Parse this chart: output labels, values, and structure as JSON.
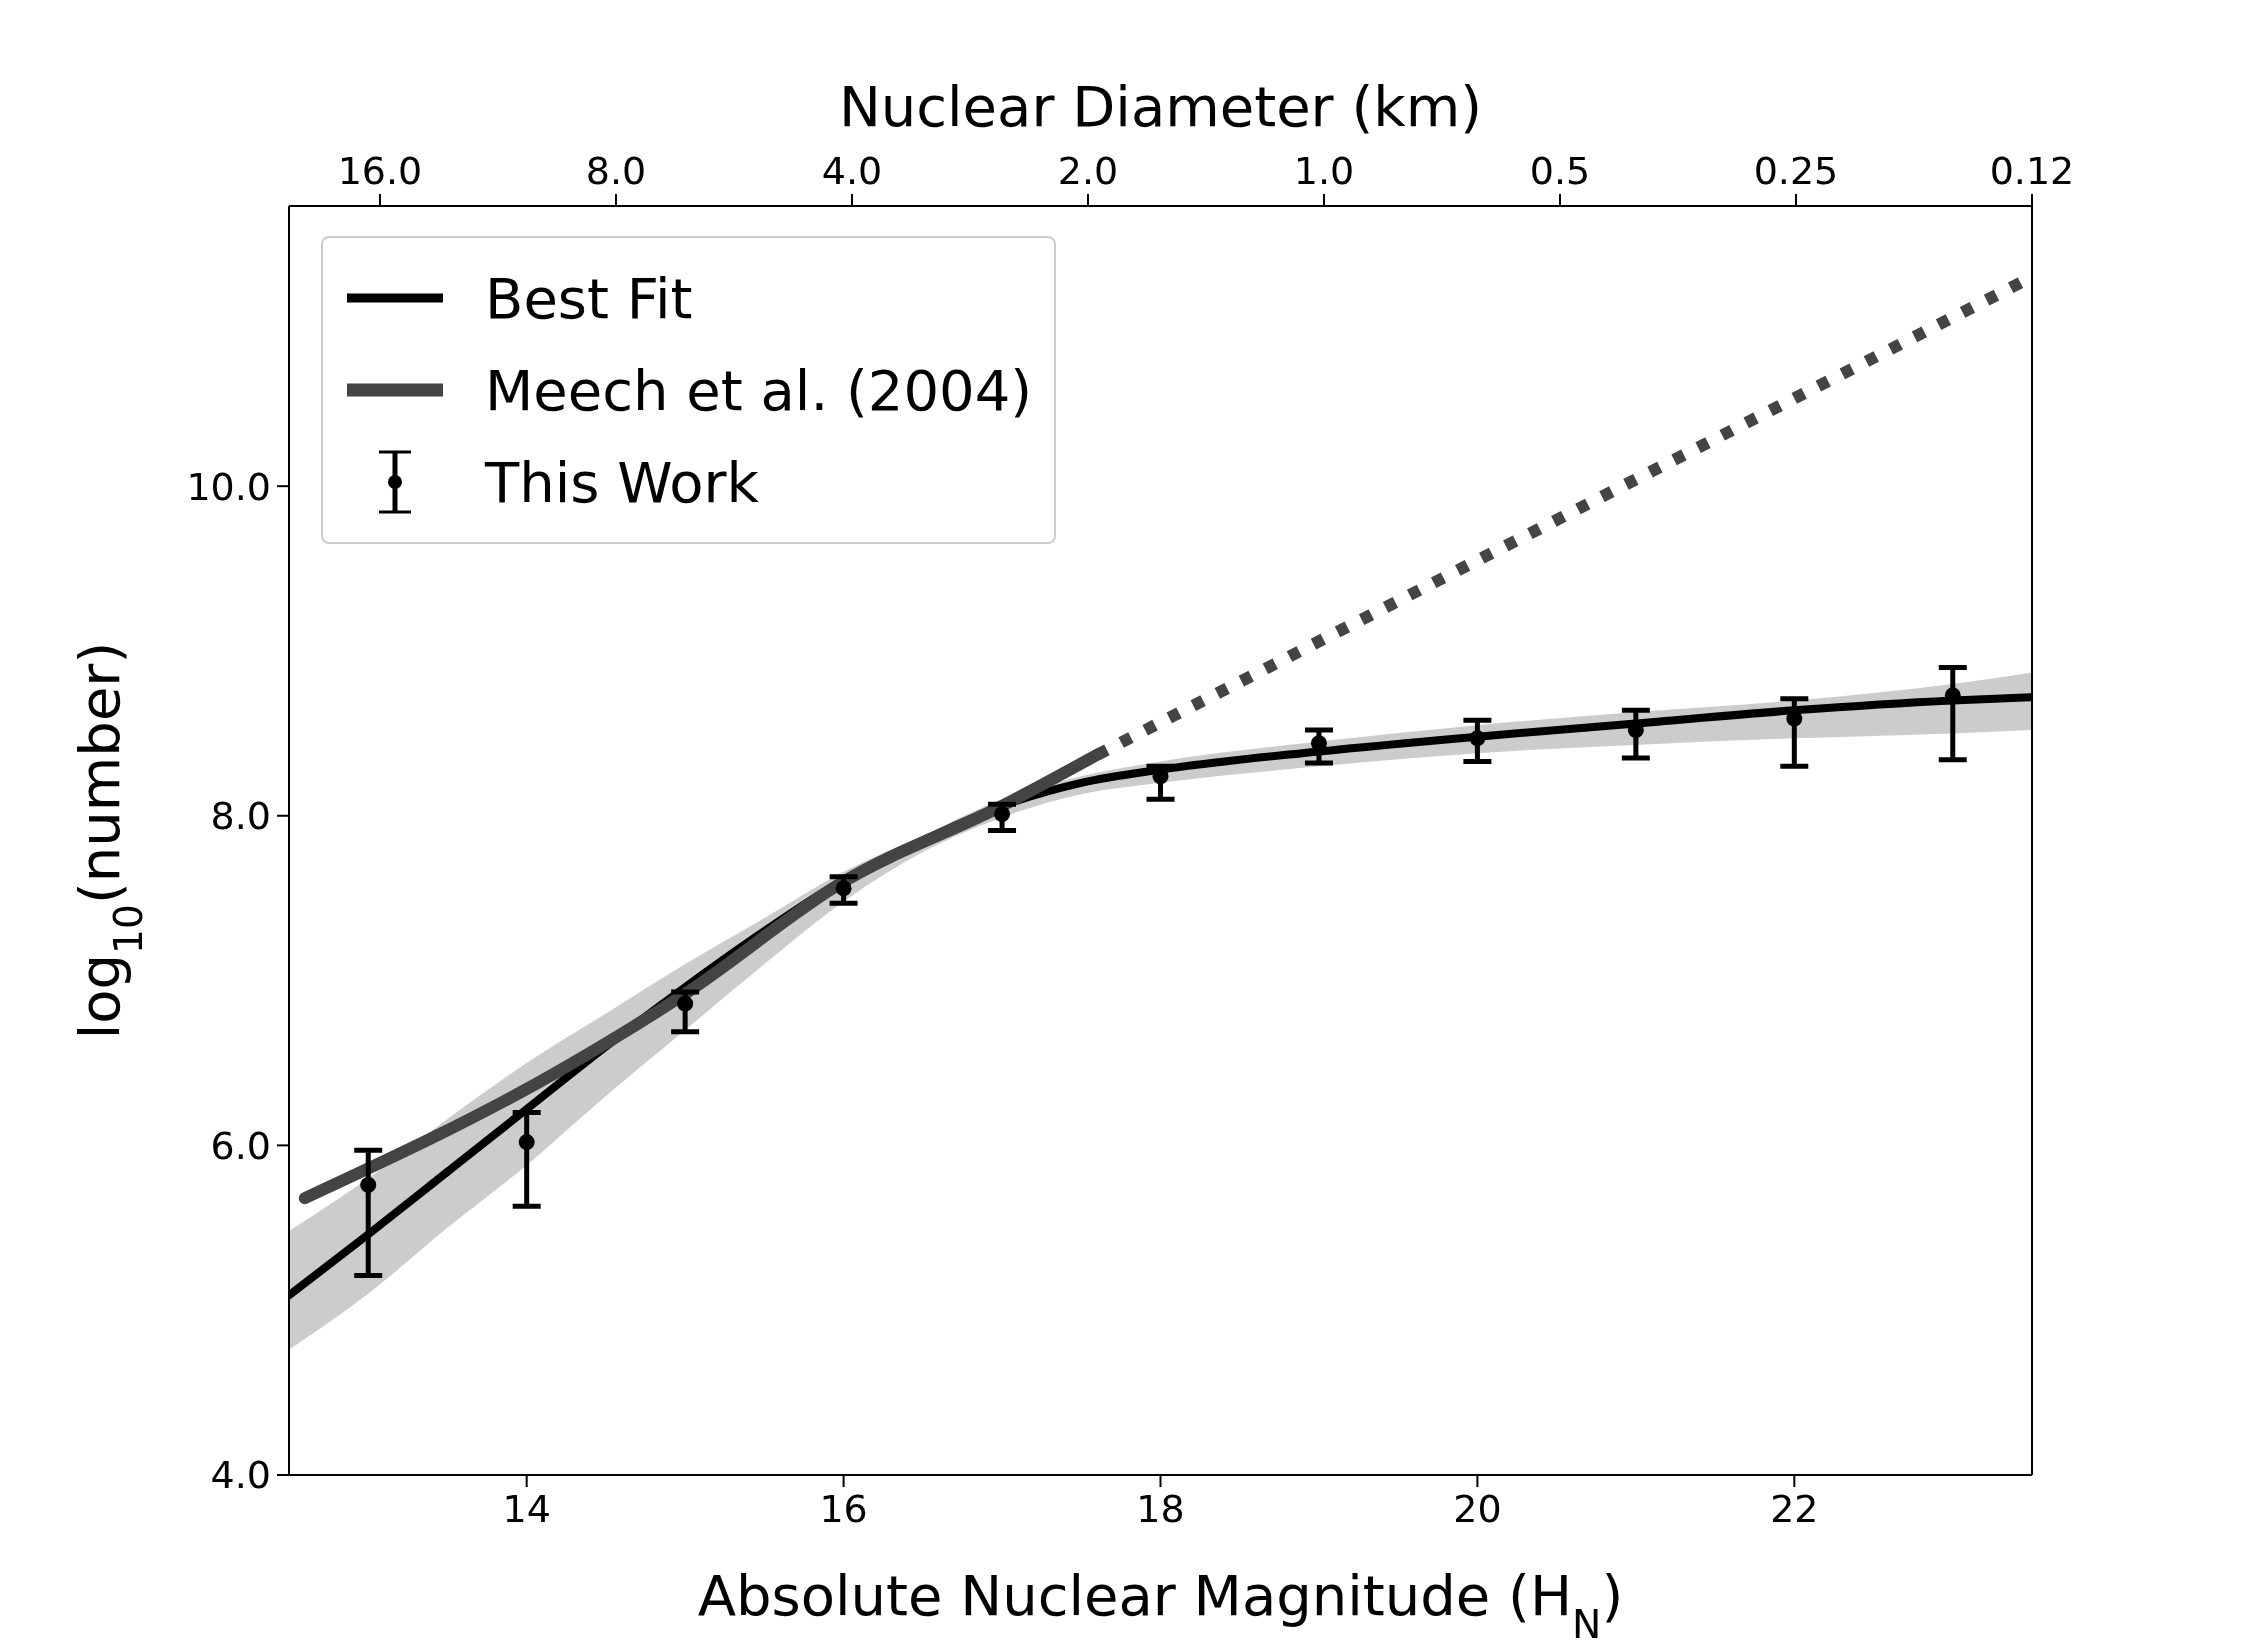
{
  "chart_data": {
    "type": "line",
    "xlabel": "Absolute Nuclear Magnitude (H$_{N}$)",
    "ylabel": "log$_{10}$(number)",
    "x2label": "Nuclear Diameter (km)",
    "xlim": [
      12.5,
      23.5
    ],
    "xticks": [
      14,
      16,
      18,
      20,
      22
    ],
    "ylim": [
      4.0,
      11.7
    ],
    "yticks": [
      {
        "value": 4,
        "label": "4.0"
      },
      {
        "value": 6,
        "label": "6.0"
      },
      {
        "value": 8,
        "label": "8.0"
      },
      {
        "value": 10,
        "label": "10.0"
      }
    ],
    "x2lim": [
      20.9,
      0.125
    ],
    "x2ticks": [
      {
        "value": 16,
        "label": "16.0"
      },
      {
        "value": 8,
        "label": "8.0"
      },
      {
        "value": 4,
        "label": "4.0"
      },
      {
        "value": 2,
        "label": "2.0"
      },
      {
        "value": 1,
        "label": "1.0"
      },
      0.5,
      0.25,
      {
        "value": 0.125,
        "label": "0.12"
      }
    ],
    "log": "x2",
    "legend": "top left",
    "grid": false,
    "series": [
      {
        "name": "Best Fit",
        "color": "#000000",
        "x": [
          12.5,
          13,
          13.5,
          14,
          14.5,
          15,
          15.5,
          16,
          16.5,
          17,
          17.5,
          18,
          19,
          20,
          21,
          22,
          23,
          23.5
        ],
        "values": [
          5.09,
          5.46,
          5.84,
          6.22,
          6.6,
          6.96,
          7.3,
          7.61,
          7.85,
          8.06,
          8.2,
          8.28,
          8.39,
          8.48,
          8.56,
          8.64,
          8.7,
          8.72
        ],
        "lower": [
          4.76,
          5.1,
          5.5,
          5.88,
          6.3,
          6.7,
          7.1,
          7.48,
          7.78,
          7.99,
          8.13,
          8.2,
          8.3,
          8.38,
          8.43,
          8.47,
          8.5,
          8.52
        ],
        "upper": [
          5.48,
          5.8,
          6.16,
          6.5,
          6.8,
          7.1,
          7.38,
          7.66,
          7.88,
          8.1,
          8.24,
          8.33,
          8.45,
          8.55,
          8.63,
          8.7,
          8.8,
          8.87
        ],
        "line_style": "solid"
      },
      {
        "name": "Meech et al. (2004)",
        "color": "#444444",
        "x": [
          12.6,
          14.2,
          15,
          16,
          17,
          17.6
        ],
        "values": [
          5.68,
          6.45,
          6.92,
          7.6,
          8.06,
          8.37
        ],
        "line_style": "solid"
      },
      {
        "color": "#444444",
        "x": [
          17.6,
          23.5
        ],
        "values": [
          8.37,
          11.27
        ],
        "line_style": "dotted"
      },
      {
        "name": "This Work",
        "type": "scatter",
        "color": "#000000",
        "marker": "circle",
        "x": [
          13,
          14,
          15,
          16,
          17,
          18,
          19,
          20,
          21,
          22,
          23
        ],
        "values": [
          5.76,
          6.02,
          6.86,
          7.56,
          8.01,
          8.24,
          8.44,
          8.47,
          8.52,
          8.59,
          8.73
        ],
        "errors": [
          [
            5.21,
            5.97
          ],
          [
            5.63,
            6.2
          ],
          [
            6.69,
            6.93
          ],
          [
            7.47,
            7.63
          ],
          [
            7.91,
            8.07
          ],
          [
            8.1,
            8.3
          ],
          [
            8.32,
            8.52
          ],
          [
            8.33,
            8.58
          ],
          [
            8.35,
            8.64
          ],
          [
            8.3,
            8.71
          ],
          [
            8.34,
            8.9
          ]
        ]
      }
    ]
  }
}
